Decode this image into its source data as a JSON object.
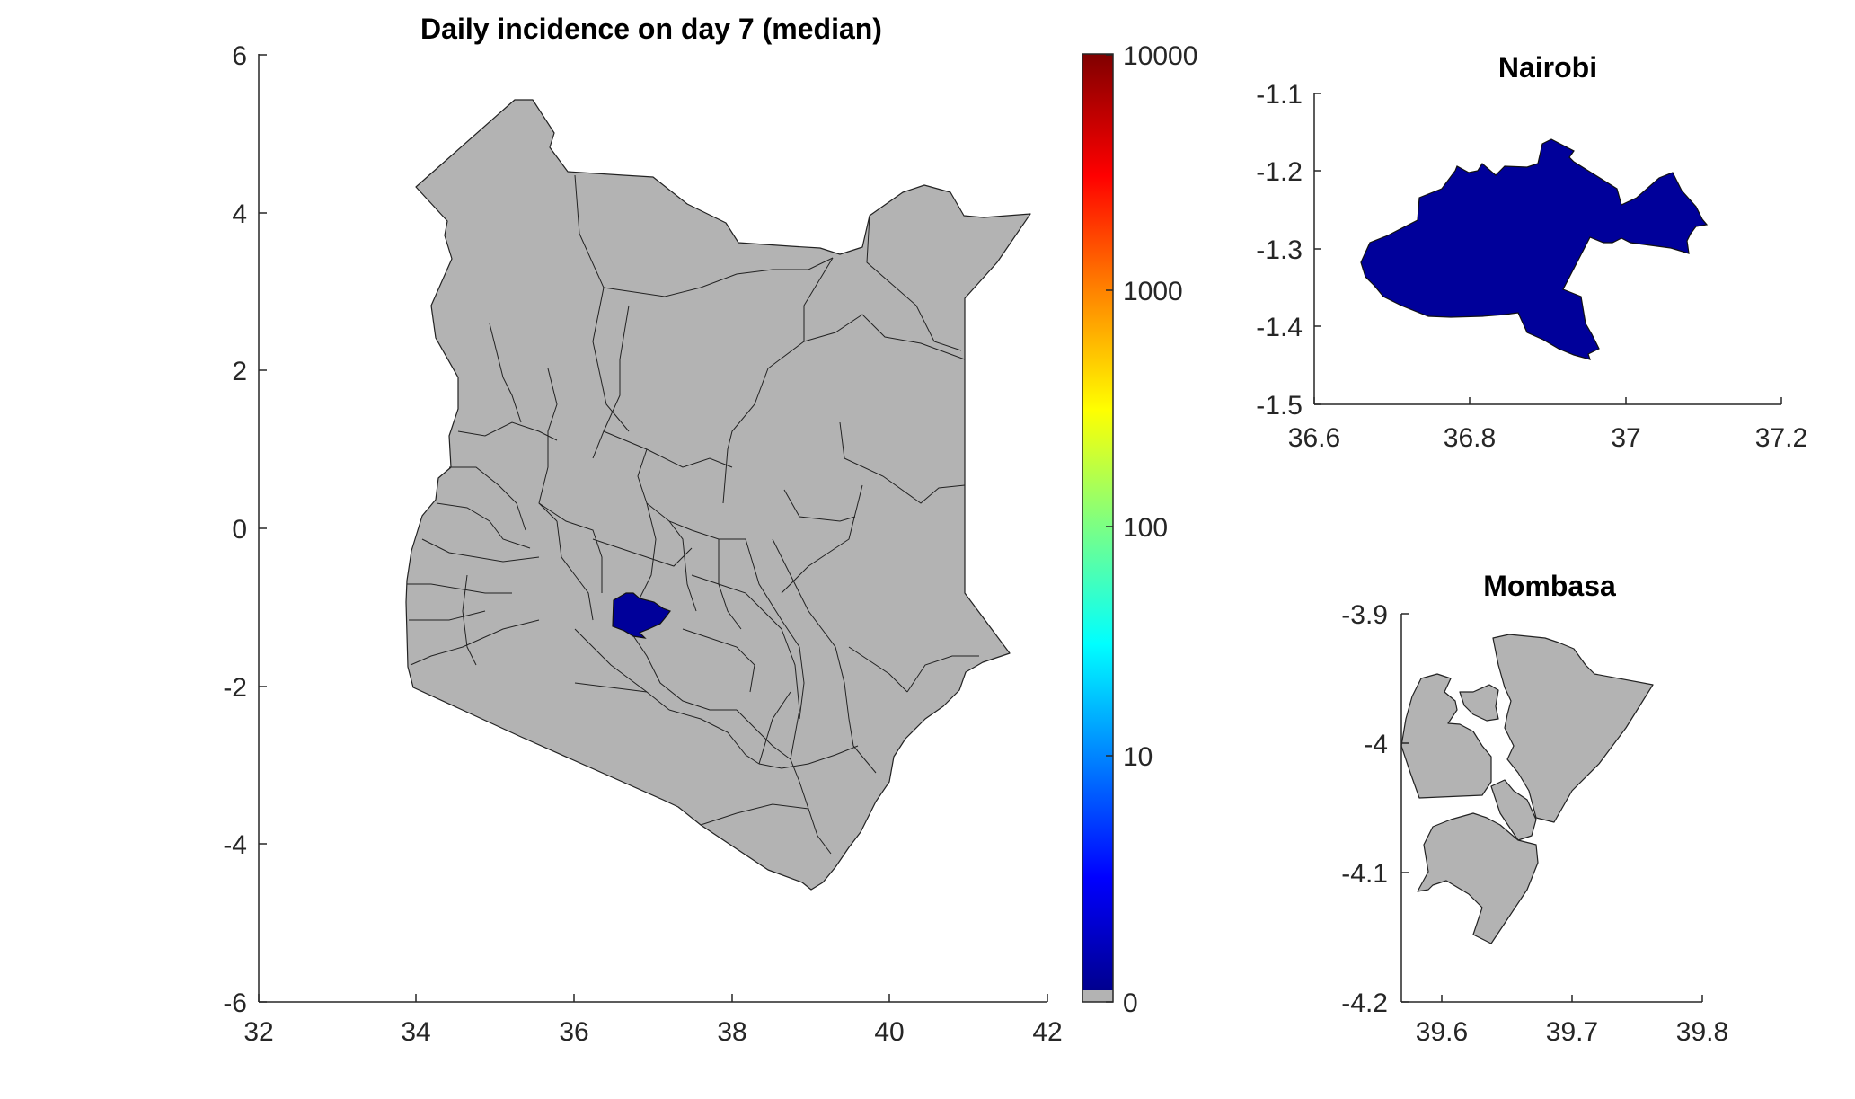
{
  "main_map": {
    "title": "Daily incidence on day 7 (median)",
    "x_ticks": [
      "32",
      "34",
      "36",
      "38",
      "40",
      "42"
    ],
    "y_ticks": [
      "6",
      "4",
      "2",
      "0",
      "-2",
      "-4",
      "-6"
    ],
    "xlim": [
      32,
      42
    ],
    "ylim": [
      -6,
      6
    ],
    "highlighted_region": "Nairobi",
    "highlight_color": "#00009a",
    "base_color": "#b3b3b3"
  },
  "colorbar": {
    "ticks": [
      "10000",
      "1000",
      "100",
      "10",
      "0"
    ],
    "scale": "log",
    "colormap": [
      "#00008f",
      "#0000ff",
      "#0080ff",
      "#00ffff",
      "#80ff80",
      "#ffff00",
      "#ff8000",
      "#ff0000",
      "#800000"
    ],
    "zero_color": "#b3b3b3"
  },
  "nairobi_inset": {
    "title": "Nairobi",
    "x_ticks": [
      "36.6",
      "36.8",
      "37",
      "37.2"
    ],
    "y_ticks": [
      "-1.1",
      "-1.2",
      "-1.3",
      "-1.4",
      "-1.5"
    ],
    "xlim": [
      36.6,
      37.2
    ],
    "ylim": [
      -1.5,
      -1.1
    ],
    "fill_color": "#00009a"
  },
  "mombasa_inset": {
    "title": "Mombasa",
    "x_ticks": [
      "39.6",
      "39.7",
      "39.8"
    ],
    "y_ticks": [
      "-3.9",
      "-4",
      "-4.1",
      "-4.2"
    ],
    "xlim": [
      39.56,
      39.8
    ],
    "ylim": [
      -4.2,
      -3.9
    ],
    "fill_color": "#b3b3b3"
  }
}
